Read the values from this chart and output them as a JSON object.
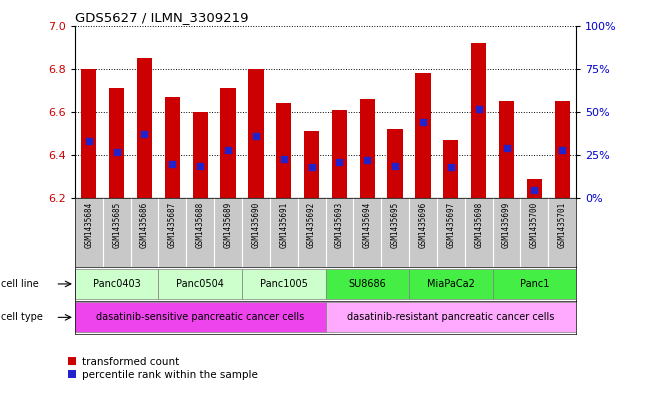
{
  "title": "GDS5627 / ILMN_3309219",
  "samples": [
    "GSM1435684",
    "GSM1435685",
    "GSM1435686",
    "GSM1435687",
    "GSM1435688",
    "GSM1435689",
    "GSM1435690",
    "GSM1435691",
    "GSM1435692",
    "GSM1435693",
    "GSM1435694",
    "GSM1435695",
    "GSM1435696",
    "GSM1435697",
    "GSM1435698",
    "GSM1435699",
    "GSM1435700",
    "GSM1435701"
  ],
  "transformed_count": [
    6.8,
    6.71,
    6.85,
    6.67,
    6.6,
    6.71,
    6.8,
    6.64,
    6.51,
    6.61,
    6.66,
    6.52,
    6.78,
    6.47,
    6.92,
    6.65,
    6.29,
    6.65
  ],
  "percentile_rank": [
    33,
    27,
    37,
    20,
    19,
    28,
    36,
    23,
    18,
    21,
    22,
    19,
    44,
    18,
    52,
    29,
    5,
    28
  ],
  "ylim_left": [
    6.2,
    7.0
  ],
  "ylim_right": [
    0,
    100
  ],
  "yticks_left": [
    6.2,
    6.4,
    6.6,
    6.8,
    7.0
  ],
  "yticks_right": [
    0,
    25,
    50,
    75,
    100
  ],
  "ytick_labels_right": [
    "0%",
    "25%",
    "50%",
    "75%",
    "100%"
  ],
  "bar_color": "#cc0000",
  "bar_bottom": 6.2,
  "blue_color": "#2222cc",
  "cell_lines": [
    {
      "label": "Panc0403",
      "start": 0,
      "end": 2,
      "color": "#ccffcc"
    },
    {
      "label": "Panc0504",
      "start": 3,
      "end": 5,
      "color": "#ccffcc"
    },
    {
      "label": "Panc1005",
      "start": 6,
      "end": 8,
      "color": "#ccffcc"
    },
    {
      "label": "SU8686",
      "start": 9,
      "end": 11,
      "color": "#44ee44"
    },
    {
      "label": "MiaPaCa2",
      "start": 12,
      "end": 14,
      "color": "#44ee44"
    },
    {
      "label": "Panc1",
      "start": 15,
      "end": 17,
      "color": "#44ee44"
    }
  ],
  "cell_types": [
    {
      "label": "dasatinib-sensitive pancreatic cancer cells",
      "start": 0,
      "end": 8,
      "color": "#ee44ee"
    },
    {
      "label": "dasatinib-resistant pancreatic cancer cells",
      "start": 9,
      "end": 17,
      "color": "#ffaaff"
    }
  ],
  "legend_items": [
    {
      "label": "transformed count",
      "color": "#cc0000"
    },
    {
      "label": "percentile rank within the sample",
      "color": "#2222cc"
    }
  ],
  "background_color": "#ffffff",
  "bar_width": 0.55,
  "tick_color_left": "#cc0000",
  "tick_color_right": "#0000cc",
  "gray_bg": "#c8c8c8"
}
